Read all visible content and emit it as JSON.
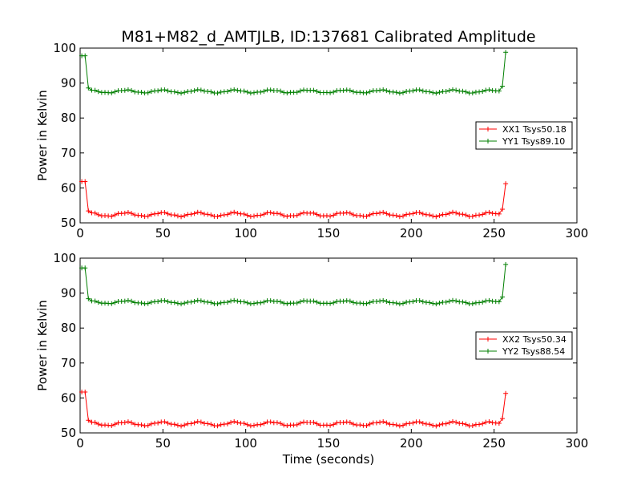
{
  "figure": {
    "title": "M81+M82_d_AMTJLB, ID:137681 Calibrated Amplitude",
    "xlabel": "Time (seconds)"
  },
  "chart_data": [
    {
      "type": "line",
      "ylabel": "Power in Kelvin",
      "xlim": [
        0,
        300
      ],
      "ylim": [
        50,
        100
      ],
      "xticks": [
        "0",
        "50",
        "100",
        "150",
        "200",
        "250",
        "300"
      ],
      "yticks": [
        "50",
        "60",
        "70",
        "80",
        "90",
        "100"
      ],
      "legend": "right",
      "grid": false,
      "series": [
        {
          "name": "XX1 Tsys50.18",
          "color": "#ff0000",
          "base": 52.4,
          "wobble": 0.5,
          "start": 61.8,
          "end": 61.2
        },
        {
          "name": "YY1 Tsys89.10",
          "color": "#007f00",
          "base": 87.6,
          "wobble": 0.4,
          "start": 97.8,
          "end": 98.8
        }
      ]
    },
    {
      "type": "line",
      "ylabel": "Power in Kelvin",
      "xlim": [
        0,
        300
      ],
      "ylim": [
        50,
        100
      ],
      "xticks": [
        "0",
        "50",
        "100",
        "150",
        "200",
        "250",
        "300"
      ],
      "yticks": [
        "50",
        "60",
        "70",
        "80",
        "90",
        "100"
      ],
      "legend": "right",
      "grid": false,
      "series": [
        {
          "name": "XX2 Tsys50.34",
          "color": "#ff0000",
          "base": 52.6,
          "wobble": 0.5,
          "start": 61.7,
          "end": 61.3
        },
        {
          "name": "YY2 Tsys88.54",
          "color": "#007f00",
          "base": 87.4,
          "wobble": 0.4,
          "start": 97.2,
          "end": 98.2
        }
      ]
    }
  ]
}
